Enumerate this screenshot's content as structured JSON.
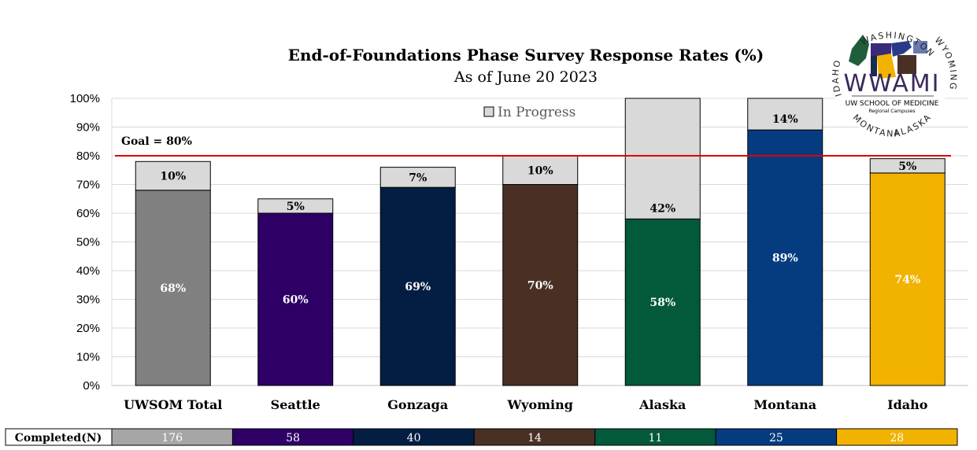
{
  "chart_data": {
    "type": "bar",
    "stacked": true,
    "title": "End-of-Foundations Phase Survey Response Rates (%)",
    "subtitle": "As of June 20 2023",
    "categories": [
      "UWSOM Total",
      "Seattle",
      "Gonzaga",
      "Wyoming",
      "Alaska",
      "Montana",
      "Idaho"
    ],
    "series": [
      {
        "name": "",
        "values": [
          68,
          60,
          69,
          70,
          58,
          89,
          74
        ],
        "labels": [
          "68%",
          "60%",
          "69%",
          "70%",
          "58%",
          "89%",
          "74%"
        ],
        "colors": [
          "#808080",
          "#2e0066",
          "#031e42",
          "#4a3024",
          "#035a3a",
          "#053c80",
          "#f2b200"
        ]
      },
      {
        "name": "In Progress",
        "values": [
          10,
          5,
          7,
          10,
          42,
          14,
          5
        ],
        "labels": [
          "10%",
          "5%",
          "7%",
          "10%",
          "42%",
          "14%",
          "5%"
        ],
        "color": "#d9d9d9"
      }
    ],
    "ylim": [
      0,
      100
    ],
    "yticks": [
      "0%",
      "10%",
      "20%",
      "30%",
      "40%",
      "50%",
      "60%",
      "70%",
      "80%",
      "90%",
      "100%"
    ],
    "goal": {
      "value": 80,
      "label": "Goal = 80%",
      "color": "#e00000"
    },
    "legend": {
      "position": "top-center"
    },
    "grid": true
  },
  "counts": {
    "header": "Completed(N)",
    "values": [
      "176",
      "58",
      "40",
      "14",
      "11",
      "25",
      "28"
    ],
    "text_colors": [
      "#ffffff",
      "#ffffff",
      "#ffffff",
      "#ffffff",
      "#ffffff",
      "#ffffff",
      "#ffffff"
    ]
  },
  "logo": {
    "wordmark": "WWAMI",
    "line1": "UW SCHOOL OF MEDICINE",
    "line2": "Regional Campuses",
    "ring": [
      "WASHINGTON",
      "WYOMING",
      "ALASKA",
      "MONTANA",
      "IDAHO"
    ]
  }
}
